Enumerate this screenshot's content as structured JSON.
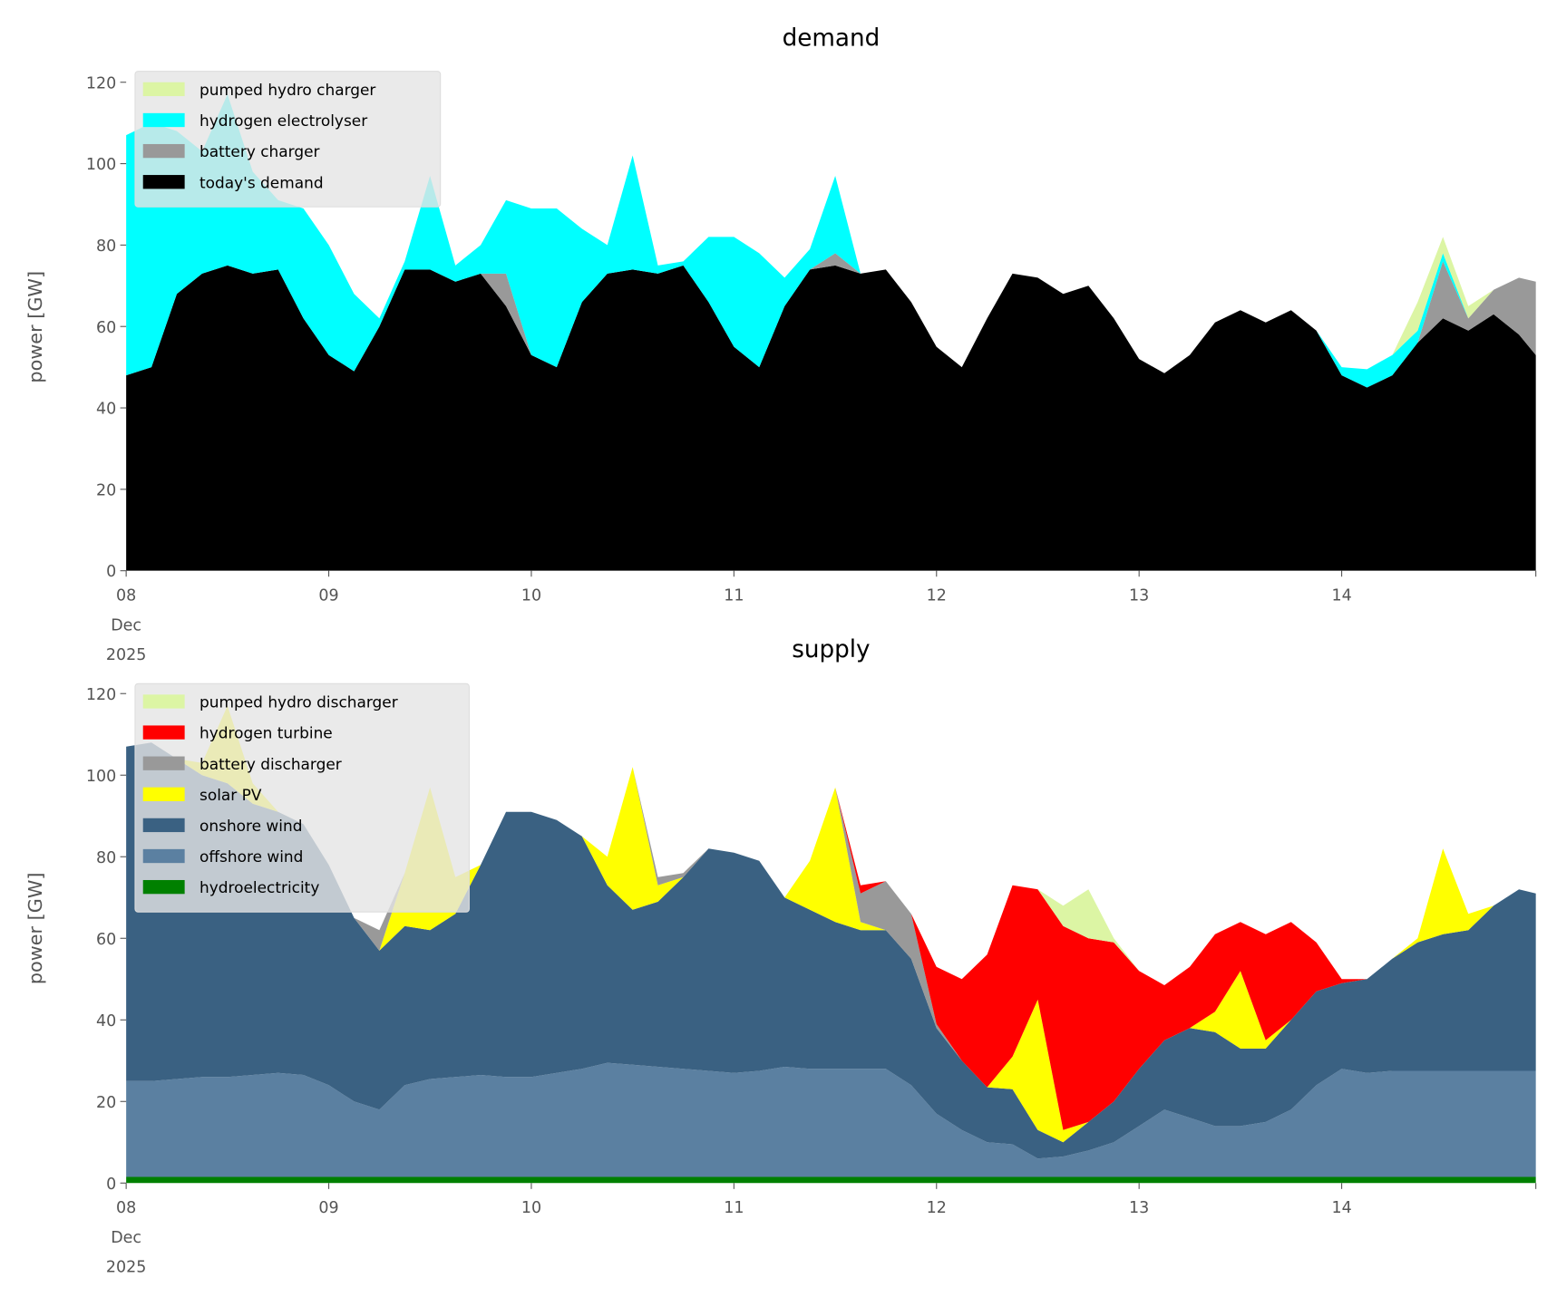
{
  "chart_data": [
    {
      "type": "area",
      "stacked": true,
      "title": "demand",
      "ylabel": "power [GW]",
      "xlabel": "",
      "ylim": [
        0,
        120
      ],
      "yticks": [
        "0",
        "20",
        "40",
        "60",
        "80",
        "100",
        "120"
      ],
      "xticks": [
        {
          "label": "08",
          "sub": [
            "Dec",
            "2025"
          ]
        },
        {
          "label": "09"
        },
        {
          "label": "10"
        },
        {
          "label": "11"
        },
        {
          "label": "12"
        },
        {
          "label": "13"
        },
        {
          "label": "14"
        }
      ],
      "x_unit": "hours since 08 Dec 2025 00:00",
      "x": [
        0,
        3,
        6,
        9,
        12,
        15,
        18,
        21,
        24,
        27,
        30,
        33,
        36,
        39,
        42,
        45,
        48,
        51,
        54,
        57,
        60,
        63,
        66,
        69,
        72,
        75,
        78,
        81,
        84,
        87,
        90,
        93,
        96,
        99,
        102,
        105,
        108,
        111,
        114,
        117,
        120,
        123,
        126,
        129,
        132,
        135,
        138,
        141,
        144,
        147,
        150,
        153,
        156,
        159,
        162,
        165,
        167
      ],
      "legend": "top-left",
      "series": [
        {
          "name": "today's demand",
          "color": "#000000",
          "values": [
            48,
            50,
            68,
            73,
            75,
            73,
            74,
            62,
            53,
            49,
            60,
            74,
            74,
            71,
            73,
            65,
            53,
            50,
            66,
            73,
            74,
            73,
            75,
            66,
            55,
            50,
            65,
            74,
            75,
            73,
            74,
            66,
            55,
            50,
            62,
            73,
            72,
            68,
            70,
            62,
            52,
            48.5,
            53,
            61,
            64,
            61,
            64,
            59,
            48,
            45,
            48,
            56,
            62,
            59,
            63,
            58,
            53
          ]
        },
        {
          "name": "battery charger",
          "color": "#999999",
          "values": [
            0,
            0,
            0,
            0,
            0,
            0,
            0,
            0,
            0,
            0,
            0,
            0,
            0,
            0,
            0,
            8,
            0,
            0,
            0,
            0,
            0,
            0,
            0,
            0,
            0,
            0,
            0,
            0,
            3,
            0,
            0,
            0,
            0,
            0,
            0,
            0,
            0,
            0,
            0,
            0,
            0,
            0,
            0,
            0,
            0,
            0,
            0,
            0,
            0,
            0,
            0,
            0,
            14,
            3,
            6,
            14,
            18
          ]
        },
        {
          "name": "hydrogen electrolyser",
          "color": "#00ffff",
          "values": [
            59,
            60,
            40,
            30,
            42,
            25,
            17,
            27,
            27,
            19,
            2,
            2,
            23,
            4,
            7,
            18,
            36,
            39,
            18,
            7,
            28,
            2,
            1,
            16,
            27,
            28,
            7,
            5,
            19,
            0,
            0,
            0,
            0,
            0,
            0,
            0,
            0,
            0,
            0,
            0,
            0,
            0,
            0,
            0,
            0,
            0,
            0,
            0,
            2,
            4.5,
            5,
            3,
            2,
            0,
            0,
            0,
            0
          ]
        },
        {
          "name": "pumped hydro charger",
          "color": "#dcf5a4",
          "values": [
            0,
            0,
            0,
            0,
            0,
            0,
            0,
            0,
            0,
            0,
            0,
            0,
            0,
            0,
            0,
            0,
            0,
            0,
            0,
            0,
            0,
            0,
            0,
            0,
            0,
            0,
            0,
            0,
            0,
            0,
            0,
            0,
            0,
            0,
            0,
            0,
            0,
            0,
            0,
            0,
            0,
            0,
            0,
            0,
            0,
            0,
            0,
            0,
            0,
            0,
            0,
            7,
            4,
            3,
            0,
            0,
            0
          ]
        }
      ],
      "legend_order": [
        "pumped hydro charger",
        "hydrogen electrolyser",
        "battery charger",
        "today's demand"
      ]
    },
    {
      "type": "area",
      "stacked": true,
      "title": "supply",
      "ylabel": "power [GW]",
      "xlabel": "",
      "ylim": [
        0,
        120
      ],
      "yticks": [
        "0",
        "20",
        "40",
        "60",
        "80",
        "100",
        "120"
      ],
      "xticks": [
        {
          "label": "08",
          "sub": [
            "Dec",
            "2025"
          ]
        },
        {
          "label": "09"
        },
        {
          "label": "10"
        },
        {
          "label": "11"
        },
        {
          "label": "12"
        },
        {
          "label": "13"
        },
        {
          "label": "14"
        }
      ],
      "x_unit": "hours since 08 Dec 2025 00:00",
      "x": [
        0,
        3,
        6,
        9,
        12,
        15,
        18,
        21,
        24,
        27,
        30,
        33,
        36,
        39,
        42,
        45,
        48,
        51,
        54,
        57,
        60,
        63,
        66,
        69,
        72,
        75,
        78,
        81,
        84,
        87,
        90,
        93,
        96,
        99,
        102,
        105,
        108,
        111,
        114,
        117,
        120,
        123,
        126,
        129,
        132,
        135,
        138,
        141,
        144,
        147,
        150,
        153,
        156,
        159,
        162,
        165,
        167
      ],
      "legend": "top-left",
      "series": [
        {
          "name": "hydroelectricity",
          "color": "#008000",
          "values": [
            1.5,
            1.5,
            1.5,
            1.5,
            1.5,
            1.5,
            1.5,
            1.5,
            1.5,
            1.5,
            1.5,
            1.5,
            1.5,
            1.5,
            1.5,
            1.5,
            1.5,
            1.5,
            1.5,
            1.5,
            1.5,
            1.5,
            1.5,
            1.5,
            1.5,
            1.5,
            1.5,
            1.5,
            1.5,
            1.5,
            1.5,
            1.5,
            1.5,
            1.5,
            1.5,
            1.5,
            1.5,
            1.5,
            1.5,
            1.5,
            1.5,
            1.5,
            1.5,
            1.5,
            1.5,
            1.5,
            1.5,
            1.5,
            1.5,
            1.5,
            1.5,
            1.5,
            1.5,
            1.5,
            1.5,
            1.5,
            1.5
          ]
        },
        {
          "name": "offshore wind",
          "color": "#5b80a1",
          "values": [
            23.5,
            23.5,
            24,
            24.5,
            24.5,
            25,
            25.5,
            25,
            22.5,
            18.5,
            16.5,
            22.5,
            24,
            24.5,
            25,
            24.5,
            24.5,
            25.5,
            26.5,
            28,
            27.5,
            27,
            26.5,
            26,
            25.5,
            26,
            27,
            26.5,
            26.5,
            26.5,
            26.5,
            22.5,
            15.5,
            11.5,
            8.5,
            8,
            4.5,
            5,
            6.5,
            8.5,
            12.5,
            16.5,
            14.5,
            12.5,
            12.5,
            13.5,
            16.5,
            22.5,
            26.5,
            25.5,
            26,
            26,
            26,
            26,
            26,
            26,
            26
          ]
        },
        {
          "name": "onshore wind",
          "color": "#3a6182",
          "values": [
            82,
            83,
            78.5,
            74,
            72,
            66.5,
            64,
            61.5,
            54,
            45,
            39,
            39,
            36.5,
            40,
            51.5,
            65,
            65,
            62,
            57,
            43.5,
            38,
            40.5,
            47,
            54.5,
            54,
            51.5,
            41.5,
            39,
            36,
            34,
            34,
            31,
            21,
            17,
            13.5,
            13.5,
            7,
            3.5,
            7,
            10,
            14,
            17,
            22,
            23,
            19,
            18,
            22,
            23,
            21,
            23,
            27.5,
            31.5,
            33.5,
            34.5,
            40.5,
            44.5,
            43.5
          ]
        },
        {
          "name": "solar PV",
          "color": "#ffff00",
          "values": [
            0,
            0,
            0,
            3,
            19,
            5,
            0,
            0,
            0,
            0,
            0,
            13,
            35,
            9,
            0,
            0,
            0,
            0,
            0,
            7,
            35,
            4,
            0,
            0,
            0,
            0,
            0,
            12,
            33,
            2,
            0,
            0,
            0,
            0,
            0,
            8,
            32,
            3,
            0,
            0,
            0,
            0,
            0,
            5,
            19,
            2,
            0,
            0,
            0,
            0,
            0,
            1,
            21,
            4,
            0,
            0,
            0
          ]
        },
        {
          "name": "battery discharger",
          "color": "#999999",
          "values": [
            0,
            0,
            0,
            0,
            0,
            0,
            0,
            0,
            0,
            0,
            5,
            0,
            0,
            0,
            0,
            0,
            0,
            0,
            0,
            0,
            0,
            2,
            1,
            0,
            0,
            0,
            0,
            0,
            0,
            7,
            12,
            11,
            1,
            0,
            0,
            0,
            0,
            0,
            0,
            0,
            0,
            0,
            0,
            0,
            0,
            0,
            0,
            0,
            0,
            0,
            0,
            0,
            0,
            0,
            0,
            0,
            0
          ]
        },
        {
          "name": "hydrogen turbine",
          "color": "#ff0000",
          "values": [
            0,
            0,
            0,
            0,
            0,
            0,
            0,
            0,
            0,
            0,
            0,
            0,
            0,
            0,
            0,
            0,
            0,
            0,
            0,
            0,
            0,
            0,
            0,
            0,
            0,
            0,
            0,
            0,
            0,
            2,
            0,
            0,
            14,
            20,
            32.5,
            42,
            27,
            50,
            45,
            39,
            24,
            13.5,
            15,
            19,
            12,
            26,
            24,
            12,
            1,
            0,
            0,
            0,
            0,
            0,
            0,
            0,
            0
          ]
        },
        {
          "name": "pumped hydro discharger",
          "color": "#dcf5a4",
          "values": [
            0,
            0,
            0,
            0,
            0,
            0,
            0,
            0,
            0,
            0,
            0,
            0,
            0,
            0,
            0,
            0,
            0,
            0,
            0,
            0,
            0,
            0,
            0,
            0,
            0,
            0,
            0,
            0,
            0,
            0,
            0,
            0,
            0,
            0,
            0,
            0,
            0,
            5,
            12,
            1,
            0,
            0,
            0,
            0,
            0,
            0,
            0,
            0,
            0,
            0,
            0,
            0,
            0,
            0,
            0,
            0,
            0
          ]
        }
      ],
      "legend_order": [
        "pumped hydro discharger",
        "hydrogen turbine",
        "battery discharger",
        "solar PV",
        "onshore wind",
        "offshore wind",
        "hydroelectricity"
      ]
    }
  ]
}
